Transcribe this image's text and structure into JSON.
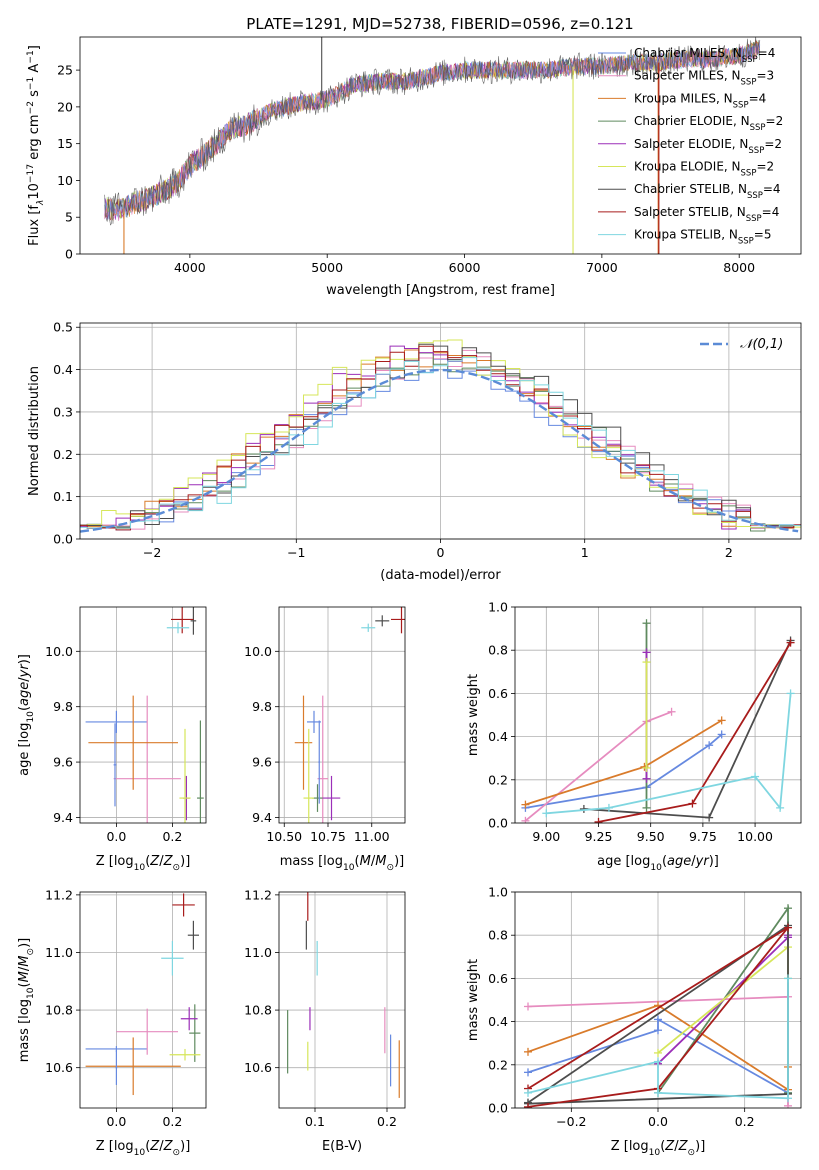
{
  "figure": {
    "title": "PLATE=1291, MJD=52738, FIBERID=0596, z=0.121"
  },
  "colors": {
    "Chabrier MILES": "#6689e0",
    "Salpeter MILES": "#e68cbf",
    "Kroupa MILES": "#d97b2b",
    "Chabrier ELODIE": "#5f8a5f",
    "Salpeter ELODIE": "#9b2fb8",
    "Kroupa ELODIE": "#d6e65a",
    "Chabrier STELIB": "#4d4d4d",
    "Salpeter STELIB": "#a81c1c",
    "Kroupa STELIB": "#7fd6e0"
  },
  "chart_data": [
    {
      "id": "spectrum",
      "type": "line",
      "title": "PLATE=1291, MJD=52738, FIBERID=0596, z=0.121",
      "xlabel": "wavelength [Angstrom, rest frame]",
      "ylabel": "Flux [f_λ10^-17 erg cm^-2 s^-1 A^-1]",
      "xlim": [
        3200,
        8450
      ],
      "ylim": [
        0,
        29.5
      ],
      "xticks": [
        4000,
        5000,
        6000,
        7000,
        8000
      ],
      "yticks": [
        0,
        5,
        10,
        15,
        20,
        25
      ],
      "grid": false,
      "legend_position": "top-right",
      "legend": [
        {
          "label": "Chabrier MILES, N_SSP=4",
          "base": "Chabrier MILES, N",
          "sub": "SSP",
          "tail": "=4"
        },
        {
          "label": "Salpeter MILES, N_SSP=3",
          "base": "Salpeter MILES, N",
          "sub": "SSP",
          "tail": "=3"
        },
        {
          "label": "Kroupa MILES, N_SSP=4",
          "base": "Kroupa MILES, N",
          "sub": "SSP",
          "tail": "=4"
        },
        {
          "label": "Chabrier ELODIE, N_SSP=2",
          "base": "Chabrier ELODIE, N",
          "sub": "SSP",
          "tail": "=2"
        },
        {
          "label": "Salpeter ELODIE, N_SSP=2",
          "base": "Salpeter ELODIE, N",
          "sub": "SSP",
          "tail": "=2"
        },
        {
          "label": "Kroupa ELODIE, N_SSP=2",
          "base": "Kroupa ELODIE, N",
          "sub": "SSP",
          "tail": "=2"
        },
        {
          "label": "Chabrier STELIB, N_SSP=4",
          "base": "Chabrier STELIB, N",
          "sub": "SSP",
          "tail": "=4"
        },
        {
          "label": "Salpeter STELIB, N_SSP=4",
          "base": "Salpeter STELIB, N",
          "sub": "SSP",
          "tail": "=4"
        },
        {
          "label": "Kroupa STELIB, N_SSP=5",
          "base": "Kroupa STELIB, N",
          "sub": "SSP",
          "tail": "=5"
        }
      ],
      "continuum": {
        "x": [
          3380,
          3500,
          3600,
          3700,
          3800,
          3900,
          4000,
          4100,
          4200,
          4300,
          4400,
          4600,
          4800,
          5000,
          5200,
          5400,
          5600,
          5800,
          6000,
          6200,
          6400,
          6600,
          6800,
          7000,
          7200,
          7400,
          7600,
          7800,
          8000,
          8150
        ],
        "y": [
          6.2,
          6.0,
          7.0,
          7.5,
          8.5,
          9.5,
          12.0,
          13.5,
          15.0,
          17.0,
          17.5,
          19.5,
          20.5,
          21.0,
          23.0,
          23.5,
          23.5,
          24.5,
          25.0,
          25.0,
          25.0,
          25.0,
          25.5,
          25.5,
          26.0,
          26.0,
          26.5,
          26.5,
          27.0,
          28.0
        ]
      },
      "spikes": [
        {
          "x": 3520,
          "y": 0,
          "series": "Kroupa MILES"
        },
        {
          "x": 4960,
          "y": 29.5,
          "series": "Chabrier STELIB"
        },
        {
          "x": 6790,
          "y": 0,
          "series": "Kroupa ELODIE"
        },
        {
          "x": 7410,
          "y": 0,
          "series": "Kroupa MILES"
        },
        {
          "x": 7415,
          "y": 0,
          "series": "Salpeter STELIB"
        }
      ]
    },
    {
      "id": "residuals",
      "type": "histogram",
      "xlabel": "(data-model)/error",
      "ylabel": "Normed distribution",
      "xlim": [
        -2.5,
        2.5
      ],
      "ylim": [
        0,
        0.51
      ],
      "xticks": [
        -2,
        -1,
        0,
        1,
        2
      ],
      "yticks": [
        0,
        0.1,
        0.2,
        0.3,
        0.4,
        0.5
      ],
      "grid": true,
      "legend_position": "top-right",
      "reference_curve": {
        "label": "𝒩(0,1)",
        "mean": 0,
        "sigma": 1,
        "color": "#5b8bd6"
      },
      "bin_width": 0.1,
      "series": [
        {
          "name": "Chabrier MILES",
          "peak": 0.4,
          "offset": 0.0
        },
        {
          "name": "Salpeter MILES",
          "peak": 0.42,
          "offset": 0.05
        },
        {
          "name": "Kroupa MILES",
          "peak": 0.43,
          "offset": -0.05
        },
        {
          "name": "Chabrier ELODIE",
          "peak": 0.42,
          "offset": 0.03
        },
        {
          "name": "Salpeter ELODIE",
          "peak": 0.44,
          "offset": -0.08
        },
        {
          "name": "Kroupa ELODIE",
          "peak": 0.45,
          "offset": -0.1
        },
        {
          "name": "Chabrier STELIB",
          "peak": 0.44,
          "offset": 0.08
        },
        {
          "name": "Salpeter STELIB",
          "peak": 0.43,
          "offset": -0.02
        },
        {
          "name": "Kroupa STELIB",
          "peak": 0.41,
          "offset": 0.1
        }
      ]
    },
    {
      "id": "age_vs_Z",
      "type": "errorbar",
      "xlabel": "Z [log10(Z/Z⊙)]",
      "ylabel": "age [log10(age/yr)]",
      "xlim": [
        -0.13,
        0.32
      ],
      "ylim": [
        9.38,
        10.16
      ],
      "xticks": [
        0.0,
        0.2
      ],
      "yticks": [
        9.4,
        9.6,
        9.8,
        10.0
      ],
      "grid": true,
      "points": [
        {
          "series": "Chabrier MILES",
          "x": 0.0,
          "y": 9.745,
          "xerr": 0.11,
          "yerr": 0.04
        },
        {
          "series": "Salpeter MILES",
          "x": 0.11,
          "y": 9.54,
          "xerr": 0.12,
          "yerr": 0.3
        },
        {
          "series": "Kroupa MILES",
          "x": 0.06,
          "y": 9.67,
          "xerr": 0.16,
          "yerr": 0.17
        },
        {
          "series": "Chabrier ELODIE",
          "x": 0.3,
          "y": 9.47,
          "xerr": 0.012,
          "yerr": 0.28
        },
        {
          "series": "Salpeter ELODIE",
          "x": 0.25,
          "y": 9.47,
          "xerr": 0.012,
          "yerr": 0.08
        },
        {
          "series": "Kroupa ELODIE",
          "x": 0.245,
          "y": 9.47,
          "xerr": 0.02,
          "yerr": 0.25
        },
        {
          "series": "Chabrier STELIB",
          "x": 0.275,
          "y": 10.11,
          "xerr": 0.01,
          "yerr": 0.05
        },
        {
          "series": "Salpeter STELIB",
          "x": 0.235,
          "y": 10.115,
          "xerr": 0.04,
          "yerr": 0.05
        },
        {
          "series": "Kroupa STELIB",
          "x": 0.22,
          "y": 10.085,
          "xerr": 0.04,
          "yerr": 0.02
        },
        {
          "series": "Chabrier MILES",
          "x": -0.005,
          "y": 9.59,
          "xerr": 0.005,
          "yerr": 0.15
        }
      ]
    },
    {
      "id": "age_vs_mass",
      "type": "errorbar",
      "xlabel": "mass [log10(M/M⊙)]",
      "ylabel": "",
      "xlim": [
        10.47,
        11.19
      ],
      "ylim": [
        9.38,
        10.16
      ],
      "xticks": [
        10.5,
        10.75,
        11.0
      ],
      "yticks": [
        9.4,
        9.6,
        9.8,
        10.0
      ],
      "grid": true,
      "points": [
        {
          "series": "Chabrier MILES",
          "x": 10.67,
          "y": 9.745,
          "xerr": 0.04,
          "yerr": 0.04
        },
        {
          "series": "Salpeter MILES",
          "x": 10.72,
          "y": 9.54,
          "xerr": 0.03,
          "yerr": 0.3
        },
        {
          "series": "Kroupa MILES",
          "x": 10.61,
          "y": 9.67,
          "xerr": 0.05,
          "yerr": 0.17
        },
        {
          "series": "Chabrier ELODIE",
          "x": 10.69,
          "y": 9.47,
          "xerr": 0.03,
          "yerr": 0.05
        },
        {
          "series": "Salpeter ELODIE",
          "x": 10.77,
          "y": 9.47,
          "xerr": 0.05,
          "yerr": 0.08
        },
        {
          "series": "Kroupa ELODIE",
          "x": 10.64,
          "y": 9.47,
          "xerr": 0.03,
          "yerr": 0.25
        },
        {
          "series": "Chabrier STELIB",
          "x": 11.06,
          "y": 10.11,
          "xerr": 0.04,
          "yerr": 0.02
        },
        {
          "series": "Salpeter STELIB",
          "x": 11.17,
          "y": 10.115,
          "xerr": 0.06,
          "yerr": 0.05
        },
        {
          "series": "Kroupa STELIB",
          "x": 10.98,
          "y": 10.085,
          "xerr": 0.04,
          "yerr": 0.015
        },
        {
          "series": "Chabrier MILES",
          "x": 10.7,
          "y": 9.6,
          "xerr": 0.005,
          "yerr": 0.15
        }
      ]
    },
    {
      "id": "weight_vs_age",
      "type": "line",
      "xlabel": "age [log10(age/yr)]",
      "ylabel": "mass weight",
      "xlim": [
        8.85,
        10.22
      ],
      "ylim": [
        0,
        1.0
      ],
      "xticks": [
        9.0,
        9.25,
        9.5,
        9.75,
        10.0
      ],
      "yticks": [
        0.0,
        0.2,
        0.4,
        0.6,
        0.8,
        1.0
      ],
      "grid": true,
      "series": [
        {
          "name": "Chabrier MILES",
          "x": [
            8.9,
            9.48,
            9.78,
            9.84
          ],
          "y": [
            0.07,
            0.165,
            0.36,
            0.41
          ]
        },
        {
          "name": "Salpeter MILES",
          "x": [
            8.9,
            9.48,
            9.6
          ],
          "y": [
            0.01,
            0.47,
            0.515
          ]
        },
        {
          "name": "Kroupa MILES",
          "x": [
            8.9,
            9.47,
            9.84
          ],
          "y": [
            0.085,
            0.26,
            0.475
          ]
        },
        {
          "name": "Chabrier ELODIE",
          "x": [
            9.48,
            9.48
          ],
          "y": [
            0.07,
            0.925
          ]
        },
        {
          "name": "Salpeter ELODIE",
          "x": [
            9.48,
            9.48
          ],
          "y": [
            0.205,
            0.79
          ]
        },
        {
          "name": "Kroupa ELODIE",
          "x": [
            9.48,
            9.48
          ],
          "y": [
            0.255,
            0.745
          ]
        },
        {
          "name": "Chabrier STELIB",
          "x": [
            9.18,
            9.78,
            10.17
          ],
          "y": [
            0.065,
            0.025,
            0.845
          ]
        },
        {
          "name": "Salpeter STELIB",
          "x": [
            9.25,
            9.7,
            10.17
          ],
          "y": [
            0.005,
            0.09,
            0.835
          ]
        },
        {
          "name": "Kroupa STELIB",
          "x": [
            9.0,
            9.3,
            10.0,
            10.12,
            10.17
          ],
          "y": [
            0.045,
            0.07,
            0.215,
            0.07,
            0.6
          ]
        }
      ]
    },
    {
      "id": "mass_vs_Z",
      "type": "errorbar",
      "xlabel": "Z [log10(Z/Z⊙)]",
      "ylabel": "mass [log10(M/M⊙)]",
      "xlim": [
        -0.13,
        0.32
      ],
      "ylim": [
        10.46,
        11.21
      ],
      "xticks": [
        0.0,
        0.2
      ],
      "yticks": [
        10.6,
        10.8,
        11.0,
        11.2
      ],
      "grid": true,
      "points": [
        {
          "series": "Chabrier MILES",
          "x": 0.0,
          "y": 10.665,
          "xerr": 0.11,
          "yerr": 0.01
        },
        {
          "series": "Salpeter MILES",
          "x": 0.11,
          "y": 10.725,
          "xerr": 0.11,
          "yerr": 0.08
        },
        {
          "series": "Kroupa MILES",
          "x": 0.06,
          "y": 10.605,
          "xerr": 0.17,
          "yerr": 0.1
        },
        {
          "series": "Chabrier ELODIE",
          "x": 0.28,
          "y": 10.72,
          "xerr": 0.02,
          "yerr": 0.1
        },
        {
          "series": "Salpeter ELODIE",
          "x": 0.26,
          "y": 10.77,
          "xerr": 0.03,
          "yerr": 0.04
        },
        {
          "series": "Kroupa ELODIE",
          "x": 0.245,
          "y": 10.645,
          "xerr": 0.055,
          "yerr": 0.02
        },
        {
          "series": "Chabrier STELIB",
          "x": 0.275,
          "y": 11.06,
          "xerr": 0.02,
          "yerr": 0.05
        },
        {
          "series": "Salpeter STELIB",
          "x": 0.24,
          "y": 11.165,
          "xerr": 0.04,
          "yerr": 0.04
        },
        {
          "series": "Kroupa STELIB",
          "x": 0.2,
          "y": 10.98,
          "xerr": 0.04,
          "yerr": 0.06
        },
        {
          "series": "Chabrier MILES",
          "x": 0.0,
          "y": 10.6,
          "xerr": 0.003,
          "yerr": 0.06
        }
      ]
    },
    {
      "id": "mass_vs_ebv",
      "type": "errorbar",
      "xlabel": "E(B-V)",
      "ylabel": "",
      "xlim": [
        0.05,
        0.225
      ],
      "ylim": [
        10.46,
        11.21
      ],
      "xticks": [
        0.1,
        0.2
      ],
      "yticks": [
        10.6,
        10.8,
        11.0,
        11.2
      ],
      "grid": true,
      "points": [
        {
          "series": "Chabrier ELODIE",
          "x": 0.062,
          "y": 10.69,
          "xerr": 0.0,
          "yerr": 0.11
        },
        {
          "series": "Kroupa ELODIE",
          "x": 0.09,
          "y": 10.64,
          "xerr": 0.0,
          "yerr": 0.05
        },
        {
          "series": "Salpeter ELODIE",
          "x": 0.093,
          "y": 10.77,
          "xerr": 0.0,
          "yerr": 0.04
        },
        {
          "series": "Chabrier STELIB",
          "x": 0.088,
          "y": 11.06,
          "xerr": 0.0,
          "yerr": 0.05
        },
        {
          "series": "Salpeter STELIB",
          "x": 0.09,
          "y": 11.16,
          "xerr": 0.0,
          "yerr": 0.05
        },
        {
          "series": "Kroupa STELIB",
          "x": 0.103,
          "y": 10.98,
          "xerr": 0.0,
          "yerr": 0.06
        },
        {
          "series": "Salpeter MILES",
          "x": 0.197,
          "y": 10.73,
          "xerr": 0.0,
          "yerr": 0.08
        },
        {
          "series": "Chabrier MILES",
          "x": 0.205,
          "y": 10.625,
          "xerr": 0.0,
          "yerr": 0.09
        },
        {
          "series": "Kroupa MILES",
          "x": 0.217,
          "y": 10.595,
          "xerr": 0.0,
          "yerr": 0.1
        }
      ]
    },
    {
      "id": "weight_vs_Z",
      "type": "line",
      "xlabel": "Z [log10(Z/Z⊙)]",
      "ylabel": "mass weight",
      "xlim": [
        -0.33,
        0.33
      ],
      "ylim": [
        0,
        1.0
      ],
      "xticks": [
        -0.2,
        0.0,
        0.2
      ],
      "yticks": [
        0.0,
        0.2,
        0.4,
        0.6,
        0.8,
        1.0
      ],
      "grid": true,
      "series": [
        {
          "name": "Chabrier MILES",
          "x": [
            -0.3,
            0.0,
            0.0,
            0.3
          ],
          "y": [
            0.165,
            0.36,
            0.41,
            0.07
          ]
        },
        {
          "name": "Salpeter MILES",
          "x": [
            -0.3,
            0.3,
            0.3
          ],
          "y": [
            0.47,
            0.515,
            0.01
          ]
        },
        {
          "name": "Kroupa MILES",
          "x": [
            -0.3,
            0.0,
            0.3,
            0.3
          ],
          "y": [
            0.26,
            0.475,
            0.085,
            0.19
          ]
        },
        {
          "name": "Chabrier ELODIE",
          "x": [
            0.0,
            0.3,
            0.3
          ],
          "y": [
            0.07,
            0.925,
            0.07
          ]
        },
        {
          "name": "Salpeter ELODIE",
          "x": [
            0.0,
            0.3,
            0.3
          ],
          "y": [
            0.205,
            0.79,
            0.8
          ]
        },
        {
          "name": "Kroupa ELODIE",
          "x": [
            0.0,
            0.3,
            0.3
          ],
          "y": [
            0.255,
            0.745,
            0.6
          ]
        },
        {
          "name": "Chabrier STELIB",
          "x": [
            -0.3,
            0.3,
            0.3,
            -0.3
          ],
          "y": [
            0.025,
            0.845,
            0.065,
            0.02
          ]
        },
        {
          "name": "Salpeter STELIB",
          "x": [
            -0.3,
            0.0,
            0.3,
            -0.3
          ],
          "y": [
            0.005,
            0.09,
            0.835,
            0.09
          ]
        },
        {
          "name": "Kroupa STELIB",
          "x": [
            -0.3,
            0.0,
            0.0,
            0.3,
            0.3
          ],
          "y": [
            0.07,
            0.215,
            0.07,
            0.045,
            0.6
          ]
        }
      ]
    }
  ]
}
